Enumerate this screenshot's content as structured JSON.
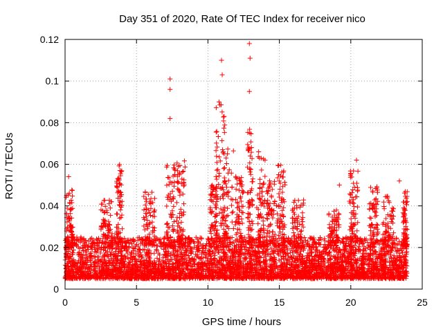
{
  "chart_data": {
    "type": "scatter",
    "title": "Day 351 of 2020, Rate Of TEC Index for receiver nico",
    "xlabel": "GPS time / hours",
    "ylabel": "ROTI / TECUs",
    "xlim": [
      0,
      25
    ],
    "ylim": [
      0,
      0.12
    ],
    "xticks": [
      0,
      5,
      10,
      15,
      20,
      25
    ],
    "yticks": [
      0,
      0.02,
      0.04,
      0.06,
      0.08,
      0.1,
      0.12
    ],
    "xtick_labels": [
      "0",
      "5",
      "10",
      "15",
      "20",
      "25"
    ],
    "ytick_labels": [
      "0",
      "0.02",
      "0.04",
      "0.06",
      "0.08",
      "0.1",
      "0.12"
    ],
    "grid": true,
    "marker": "+",
    "color": "#ff0000",
    "series": [
      {
        "name": "ROTI",
        "x_range": [
          0,
          23.95
        ],
        "typical_range": [
          0.005,
          0.025
        ],
        "notable_points": [
          {
            "x": 12.9,
            "y": 0.118
          },
          {
            "x": 10.95,
            "y": 0.11
          },
          {
            "x": 12.95,
            "y": 0.111
          },
          {
            "x": 11.0,
            "y": 0.103
          },
          {
            "x": 7.35,
            "y": 0.101
          },
          {
            "x": 7.35,
            "y": 0.096
          },
          {
            "x": 12.9,
            "y": 0.095
          },
          {
            "x": 7.35,
            "y": 0.082
          },
          {
            "x": 13.55,
            "y": 0.066
          },
          {
            "x": 13.6,
            "y": 0.063
          },
          {
            "x": 20.4,
            "y": 0.062
          },
          {
            "x": 0.25,
            "y": 0.054
          },
          {
            "x": 19.2,
            "y": 0.05
          },
          {
            "x": 23.4,
            "y": 0.052
          }
        ],
        "peak_windows": [
          {
            "center": 0.3,
            "width": 0.25,
            "max": 0.048
          },
          {
            "center": 2.9,
            "width": 0.4,
            "max": 0.043
          },
          {
            "center": 3.8,
            "width": 0.2,
            "max": 0.06
          },
          {
            "center": 5.9,
            "width": 0.4,
            "max": 0.047
          },
          {
            "center": 7.4,
            "width": 0.3,
            "max": 0.06
          },
          {
            "center": 8.1,
            "width": 0.3,
            "max": 0.062
          },
          {
            "center": 10.4,
            "width": 0.25,
            "max": 0.05
          },
          {
            "center": 10.9,
            "width": 0.35,
            "max": 0.09
          },
          {
            "center": 11.4,
            "width": 0.4,
            "max": 0.068
          },
          {
            "center": 12.2,
            "width": 0.3,
            "max": 0.055
          },
          {
            "center": 12.95,
            "width": 0.2,
            "max": 0.08
          },
          {
            "center": 13.7,
            "width": 0.3,
            "max": 0.066
          },
          {
            "center": 14.4,
            "width": 0.3,
            "max": 0.052
          },
          {
            "center": 15.1,
            "width": 0.3,
            "max": 0.06
          },
          {
            "center": 16.3,
            "width": 0.4,
            "max": 0.043
          },
          {
            "center": 18.8,
            "width": 0.4,
            "max": 0.038
          },
          {
            "center": 20.2,
            "width": 0.3,
            "max": 0.058
          },
          {
            "center": 21.6,
            "width": 0.3,
            "max": 0.05
          },
          {
            "center": 22.6,
            "width": 0.4,
            "max": 0.045
          },
          {
            "center": 23.8,
            "width": 0.15,
            "max": 0.048
          }
        ]
      }
    ]
  }
}
